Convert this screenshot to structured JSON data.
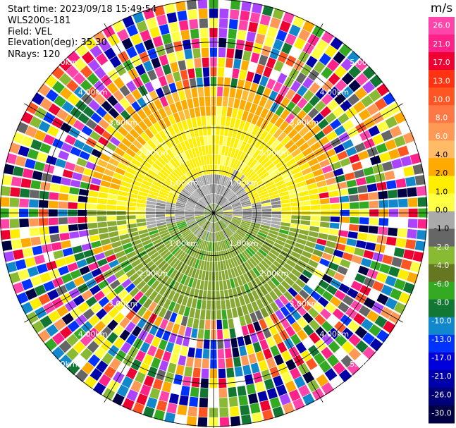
{
  "header": {
    "start_time": "Start time: 2023/09/18 15:49:54",
    "instrument": "WLS200s-181",
    "field": "Field: VEL",
    "elevation": "Elevation(deg): 35.30",
    "nrays": "NRays: 120"
  },
  "chart_data": {
    "type": "heatmap",
    "subtype": "radar-ppi-polar",
    "field": "VEL",
    "n_rays": 120,
    "range_rings": [
      {
        "label": "1.00km",
        "value": 1
      },
      {
        "label": "2.00km",
        "value": 2
      },
      {
        "label": "3.00km",
        "value": 3
      },
      {
        "label": "4.00km",
        "value": 4
      },
      {
        "label": "5.00km",
        "value": 5
      }
    ],
    "ring_label_bearings_deg": [
      45,
      135,
      225,
      315
    ],
    "spoke_bearings_deg": [
      0,
      30,
      60,
      90,
      120,
      150,
      180,
      210,
      240,
      270,
      300,
      330
    ],
    "colorbar": {
      "unit": "m/s",
      "levels": [
        "26.0",
        "21.0",
        "17.0",
        "13.0",
        "10.0",
        "8.0",
        "6.0",
        "4.0",
        "2.0",
        "1.0",
        "0.0",
        "-1.0",
        "-2.0",
        "-4.0",
        "-6.0",
        "-8.0",
        "-10.0",
        "-13.0",
        "-17.0",
        "-21.0",
        "-26.0",
        "-30.0"
      ],
      "colors": [
        "#ff44aa",
        "#ff2288",
        "#ee0033",
        "#ff3311",
        "#ff5522",
        "#ff7744",
        "#ff9955",
        "#ffbb66",
        "#ffaa00",
        "#ffee00",
        "#ffff44",
        "#aaaaaa",
        "#666666",
        "#88bb33",
        "#667722",
        "#33aa22",
        "#117733",
        "#1188cc",
        "#0033ff",
        "#0000dd",
        "#0000aa",
        "#000077",
        "#000044"
      ]
    },
    "regions": [
      {
        "label": "near-zero grey",
        "range_km": [
          0,
          1.0
        ],
        "velocity_ms": 0
      },
      {
        "label": "positive yellow (north)",
        "range_km": [
          0.8,
          2.6
        ],
        "velocity_ms": 3
      },
      {
        "label": "positive orange band (north)",
        "range_km": [
          2.3,
          3.1
        ],
        "velocity_ms": 5
      },
      {
        "label": "negative olive green (south)",
        "range_km": [
          0.5,
          3.2
        ],
        "velocity_ms": -3
      },
      {
        "label": "noise (beyond signal)",
        "range_km": [
          3.1,
          5.7
        ],
        "velocity_ms": null
      }
    ]
  }
}
